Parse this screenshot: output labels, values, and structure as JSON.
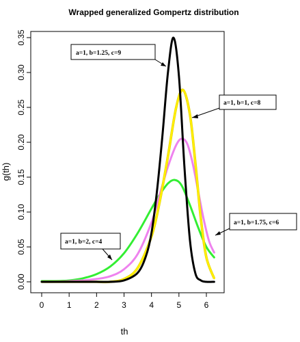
{
  "chart_data": {
    "type": "line",
    "title": "Wrapped generalized Gompertz distribution",
    "xlabel": "th",
    "ylabel": "g(th)",
    "xlim": [
      0,
      6.283
    ],
    "ylim": [
      0,
      0.35
    ],
    "x_ticks": [
      "0",
      "1",
      "2",
      "3",
      "4",
      "5",
      "6"
    ],
    "y_ticks": [
      "0.00",
      "0.05",
      "0.10",
      "0.15",
      "0.20",
      "0.25",
      "0.30",
      "0.35"
    ],
    "grid": false,
    "legend": "none",
    "series": [
      {
        "color": "#000000",
        "x": [
          0,
          0.5,
          1,
          1.5,
          2,
          2.5,
          3,
          3.5,
          3.8,
          4.0,
          4.2,
          4.4,
          4.6,
          4.8,
          5.0,
          5.2,
          5.4,
          5.6,
          5.8,
          6.0,
          6.283
        ],
        "y": [
          0.0,
          0.0,
          0.0,
          0.0,
          0.0,
          0.0,
          0.002,
          0.013,
          0.037,
          0.07,
          0.13,
          0.21,
          0.3,
          0.35,
          0.295,
          0.165,
          0.06,
          0.012,
          0.002,
          0.0,
          0.0
        ]
      },
      {
        "color": "#ffee00",
        "x": [
          0,
          0.5,
          1,
          1.5,
          2,
          2.5,
          3,
          3.5,
          4.0,
          4.3,
          4.6,
          4.9,
          5.15,
          5.4,
          5.6,
          5.8,
          6.0,
          6.283
        ],
        "y": [
          0.0,
          0.0,
          0.0,
          0.0,
          0.0,
          0.0,
          0.004,
          0.02,
          0.065,
          0.115,
          0.18,
          0.25,
          0.275,
          0.24,
          0.17,
          0.09,
          0.035,
          0.005
        ]
      },
      {
        "color": "#ee82ee",
        "x": [
          0,
          0.5,
          1,
          1.5,
          2,
          2.5,
          3,
          3.5,
          4.0,
          4.3,
          4.6,
          4.9,
          5.1,
          5.3,
          5.5,
          5.7,
          5.9,
          6.1,
          6.283
        ],
        "y": [
          0.0,
          0.0,
          0.001,
          0.002,
          0.004,
          0.008,
          0.018,
          0.04,
          0.085,
          0.125,
          0.165,
          0.196,
          0.205,
          0.198,
          0.17,
          0.13,
          0.09,
          0.058,
          0.042
        ]
      },
      {
        "color": "#33ee33",
        "x": [
          0,
          0.5,
          1,
          1.5,
          2,
          2.5,
          3,
          3.5,
          4.0,
          4.3,
          4.6,
          4.85,
          5.1,
          5.4,
          5.7,
          6.0,
          6.283
        ],
        "y": [
          0.001,
          0.001,
          0.002,
          0.005,
          0.011,
          0.022,
          0.041,
          0.07,
          0.105,
          0.125,
          0.141,
          0.146,
          0.138,
          0.11,
          0.078,
          0.05,
          0.035
        ]
      }
    ],
    "annotations": [
      {
        "text": "a=1, b=1.25, c=9"
      },
      {
        "text": "a=1, b=1, c=8"
      },
      {
        "text": "a=1, b=1.75, c=6"
      },
      {
        "text": "a=1, b=2, c=4"
      }
    ]
  }
}
